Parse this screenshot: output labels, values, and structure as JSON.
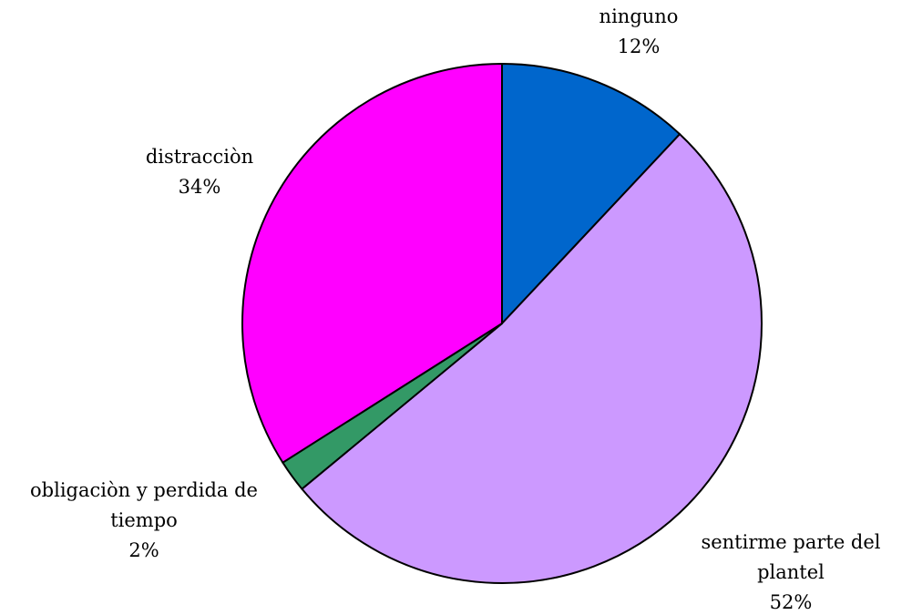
{
  "chart_data": {
    "type": "pie",
    "categories": [
      "ninguno",
      "sentirme parte del plantel",
      "obligaciòn y perdida de tiempo",
      "distracciòn"
    ],
    "values": [
      12,
      52,
      2,
      34
    ],
    "value_labels": [
      "12%",
      "52%",
      "2%",
      "34%"
    ],
    "colors": [
      "#0066cc",
      "#cc99ff",
      "#339966",
      "#ff00ff"
    ]
  }
}
